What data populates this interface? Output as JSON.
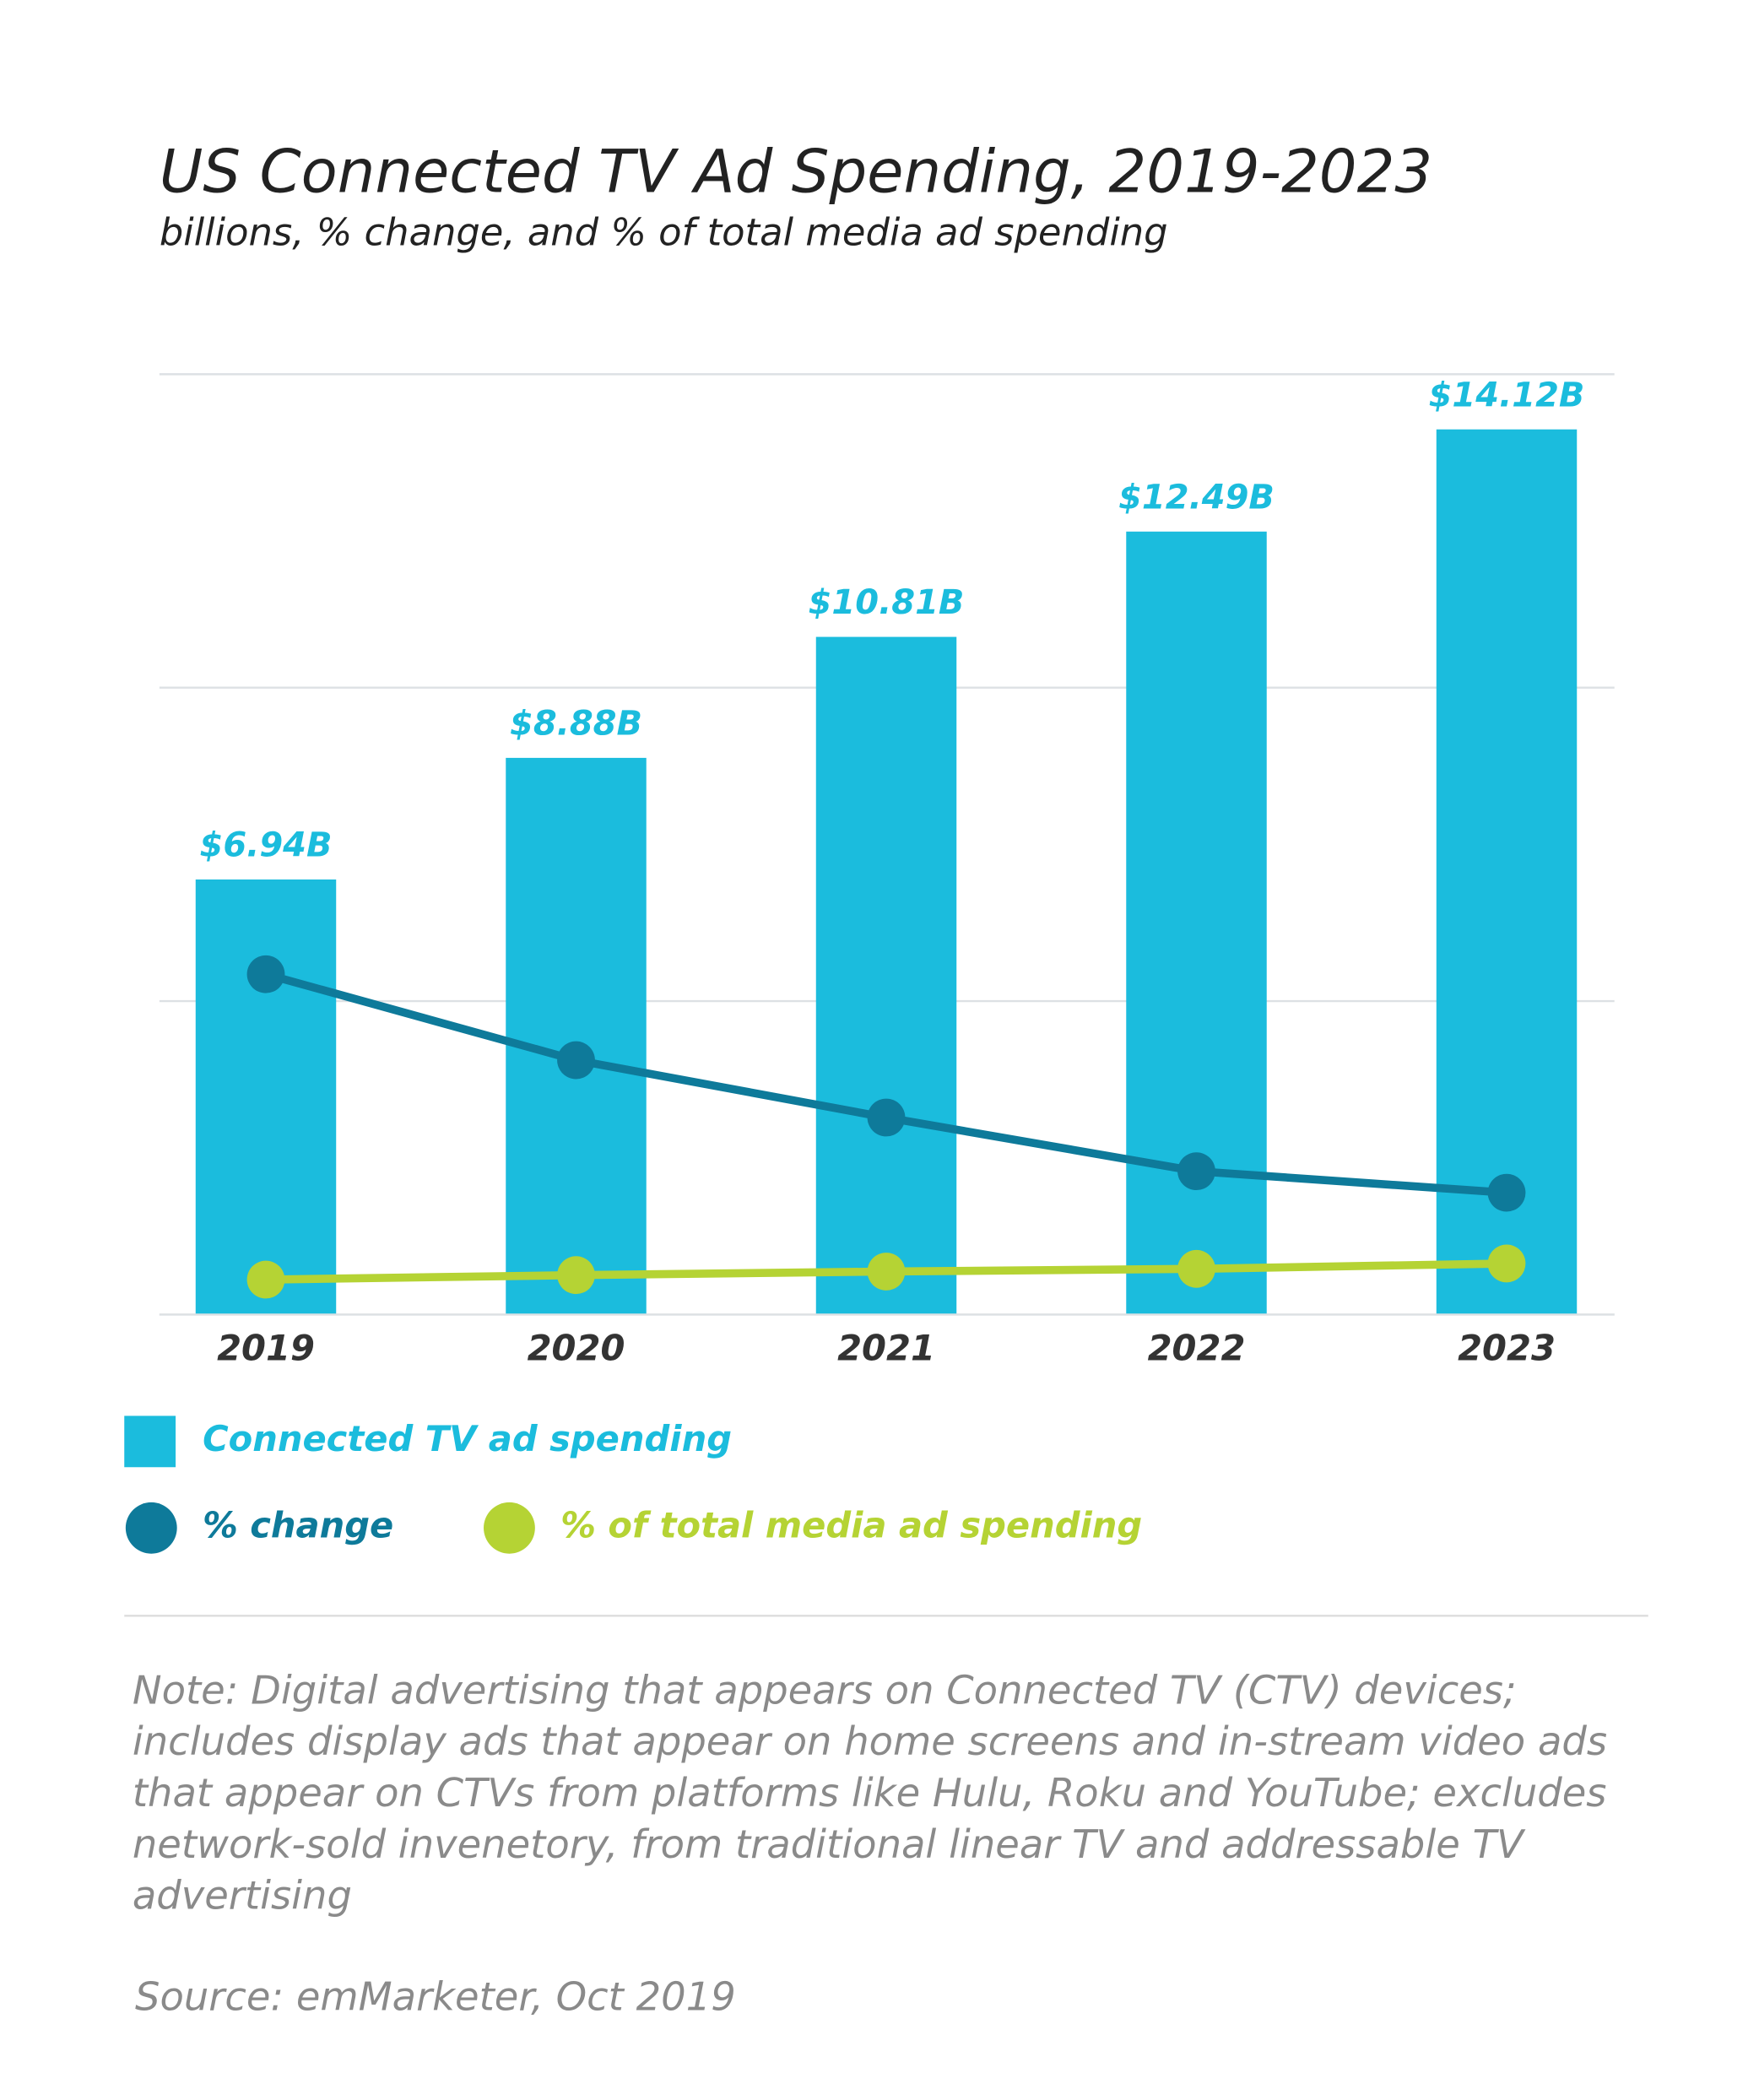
{
  "chart_data": {
    "type": "bar",
    "title": "US Connected TV Ad Spending, 2019-2023",
    "subtitle": "billions, % change, and % of total media ad spending",
    "categories": [
      "2019",
      "2020",
      "2021",
      "2022",
      "2023"
    ],
    "ylim": [
      0,
      15
    ],
    "yticks": [
      0,
      5,
      10,
      15
    ],
    "y2lim": [
      0,
      105
    ],
    "grid": true,
    "series": [
      {
        "name": "Connected TV ad spending",
        "type": "bar",
        "color": "#1bbcdd",
        "values": [
          6.94,
          8.88,
          10.81,
          12.49,
          14.12
        ],
        "value_labels": [
          "$6.94B",
          "$8.88B",
          "$10.81B",
          "$12.49B",
          "$14.12B"
        ]
      },
      {
        "name": "% change",
        "type": "line",
        "axis": "y2",
        "color": "#0e7a9a",
        "values": [
          38.0,
          28.4,
          22.0,
          16.0,
          13.6
        ]
      },
      {
        "name": "% of total media ad spending",
        "type": "line",
        "axis": "y2",
        "color": "#b5d334",
        "values": [
          3.9,
          4.4,
          4.8,
          5.1,
          5.7
        ]
      }
    ],
    "note": "Note: Digital advertising that appears on Connected TV (CTV) devices; includes display ads that appear on home screens and in-stream video ads that appear on CTVs from platforms like Hulu, Roku and YouTube; excludes network-sold invenetory, from traditional linear TV and addressable TV advertising",
    "source": "Source: emMarketer, Oct 2019"
  }
}
